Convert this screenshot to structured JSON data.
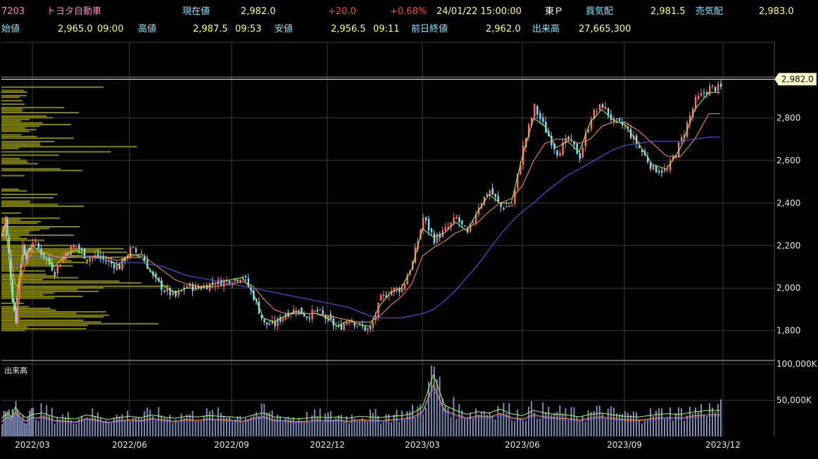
{
  "header": {
    "code": "7203",
    "name": "トヨタ自動車",
    "current_label": "現在値",
    "current_value": "2,982.0",
    "change": "+20.0",
    "change_pct": "+0.68%",
    "datetime": "24/01/22 15:00:00",
    "market": "東Ｐ",
    "bid_label": "買気配",
    "bid_value": "2,981.5",
    "ask_label": "売気配",
    "ask_value": "2,983.0",
    "open_label": "始値",
    "open_value": "2,965.0",
    "open_time": "09:00",
    "high_label": "高値",
    "high_value": "2,987.5",
    "high_time": "09:53",
    "low_label": "安値",
    "low_value": "2,956.5",
    "low_time": "09:11",
    "prev_close_label": "前日終値",
    "prev_close_value": "2,962.0",
    "volume_label": "出来高",
    "volume_value": "27,665,300"
  },
  "colors": {
    "up": "#ff6e6e",
    "down": "#7fe0ff",
    "ma_short": "#9bff5c",
    "ma_mid": "#ff9a3c",
    "ma_long": "#5a5aff",
    "volume_profile": "#8c8c00",
    "volume_bar": "#7c8cb4",
    "grid": "#3a3a3a",
    "current_price_tag": "#ffffcc"
  },
  "chart_data": [
    {
      "type": "candlestick",
      "y_ticks": [
        "1,800",
        "2,000",
        "2,200",
        "2,400",
        "2,600",
        "2,800"
      ],
      "y_tick_values": [
        1800,
        2000,
        2200,
        2400,
        2600,
        2800
      ],
      "ylim": [
        1660,
        3010
      ],
      "x_ticks": [
        "2022/03",
        "2022/06",
        "2022/09",
        "2022/12",
        "2023/03",
        "2023/06",
        "2023/09",
        "2023/12"
      ],
      "current_price_label": "2,982.0",
      "current_price": 2982,
      "closes": [
        [
          2250,
          2330,
          2160,
          1950,
          1850,
          2050,
          2200,
          2150,
          2180
        ],
        [
          2220,
          2150,
          2080,
          2170,
          2200,
          2140,
          2150,
          2120,
          2100
        ],
        [
          2180,
          2160,
          2050,
          1990,
          1960,
          2010,
          2000,
          2020,
          2030
        ],
        [
          2040,
          2060,
          1960,
          1830,
          1830,
          1880,
          1900,
          1870,
          1890
        ],
        [
          1850,
          1810,
          1860,
          1820,
          1800,
          1950,
          1990,
          2000,
          2120
        ],
        [
          2330,
          2230,
          2270,
          2330,
          2250,
          2390,
          2460,
          2380,
          2390
        ],
        [
          2660,
          2850,
          2740,
          2640,
          2700,
          2620,
          2810,
          2860,
          2780
        ],
        [
          2760,
          2660,
          2560,
          2550,
          2700,
          2880,
          2940
        ]
      ],
      "ma_short": [
        [
          2250,
          2300,
          2180,
          1980,
          1900,
          2020,
          2150,
          2160,
          2170
        ],
        [
          2200,
          2160,
          2100,
          2150,
          2180,
          2150,
          2140,
          2130,
          2110
        ],
        [
          2160,
          2150,
          2070,
          2010,
          1980,
          2000,
          2000,
          2010,
          2030
        ],
        [
          2040,
          2050,
          1980,
          1860,
          1840,
          1870,
          1890,
          1880,
          1880
        ],
        [
          1860,
          1820,
          1850,
          1830,
          1820,
          1920,
          1980,
          2000,
          2090
        ],
        [
          2280,
          2240,
          2260,
          2310,
          2270,
          2360,
          2440,
          2400,
          2400
        ],
        [
          2620,
          2800,
          2760,
          2660,
          2690,
          2640,
          2780,
          2840,
          2790
        ],
        [
          2770,
          2680,
          2580,
          2560,
          2660,
          2840,
          2920
        ]
      ],
      "ma_mid": [
        [
          2240,
          2250,
          2220,
          2120,
          2020,
          2000,
          2060,
          2110,
          2140
        ],
        [
          2170,
          2170,
          2150,
          2140,
          2150,
          2150,
          2150,
          2140,
          2130
        ],
        [
          2150,
          2160,
          2120,
          2080,
          2040,
          2020,
          2010,
          2005,
          2010
        ],
        [
          2020,
          2030,
          2010,
          1950,
          1900,
          1880,
          1880,
          1880,
          1880
        ],
        [
          1870,
          1860,
          1850,
          1840,
          1840,
          1870,
          1920,
          1960,
          2020
        ],
        [
          2150,
          2190,
          2220,
          2260,
          2280,
          2310,
          2360,
          2400,
          2420
        ],
        [
          2480,
          2600,
          2680,
          2700,
          2700,
          2680,
          2700,
          2760,
          2780
        ],
        [
          2780,
          2740,
          2680,
          2620,
          2620,
          2700,
          2820
        ]
      ],
      "ma_long": [
        [
          2200,
          2180,
          2160,
          2140,
          2120,
          2110,
          2120,
          2130,
          2140
        ],
        [
          2150,
          2150,
          2150,
          2150,
          2150,
          2150,
          2140,
          2130,
          2120
        ],
        [
          2120,
          2120,
          2110,
          2100,
          2080,
          2060,
          2050,
          2040,
          2030
        ],
        [
          2020,
          2010,
          2000,
          1990,
          1980,
          1970,
          1960,
          1950,
          1940
        ],
        [
          1930,
          1920,
          1910,
          1890,
          1870,
          1860,
          1860,
          1860,
          1870
        ],
        [
          1880,
          1900,
          1940,
          1990,
          2050,
          2110,
          2180,
          2250,
          2310
        ],
        [
          2360,
          2400,
          2450,
          2490,
          2530,
          2560,
          2590,
          2620,
          2650
        ],
        [
          2670,
          2680,
          2690,
          2690,
          2690,
          2700,
          2710
        ]
      ]
    },
    {
      "type": "bar",
      "title": "出来高",
      "y_ticks": [
        "100,000K",
        "50,000K"
      ],
      "y_tick_values": [
        100000,
        50000
      ],
      "ylim": [
        0,
        105000
      ],
      "values": [
        [
          28000,
          32000,
          35000,
          30000,
          45000,
          38000,
          33000,
          29000,
          31000
        ],
        [
          34000,
          36000,
          30000,
          28000,
          27000,
          33000,
          30000,
          26000,
          29000
        ],
        [
          31000,
          29000,
          33000,
          30000,
          28000,
          31000,
          30000,
          32000,
          31000
        ],
        [
          30000,
          28000,
          33000,
          36000,
          30000,
          29000,
          27000,
          28000,
          30000
        ],
        [
          29000,
          30000,
          28000,
          31000,
          30000,
          29000,
          31000,
          32000,
          35000
        ],
        [
          45000,
          95000,
          48000,
          40000,
          34000,
          38000,
          36000,
          42000,
          35000
        ],
        [
          32000,
          40000,
          36000,
          34000,
          33000,
          30000,
          34000,
          36000,
          33000
        ],
        [
          31000,
          30000,
          33000,
          35000,
          34000,
          38000,
          40000
        ]
      ]
    }
  ]
}
